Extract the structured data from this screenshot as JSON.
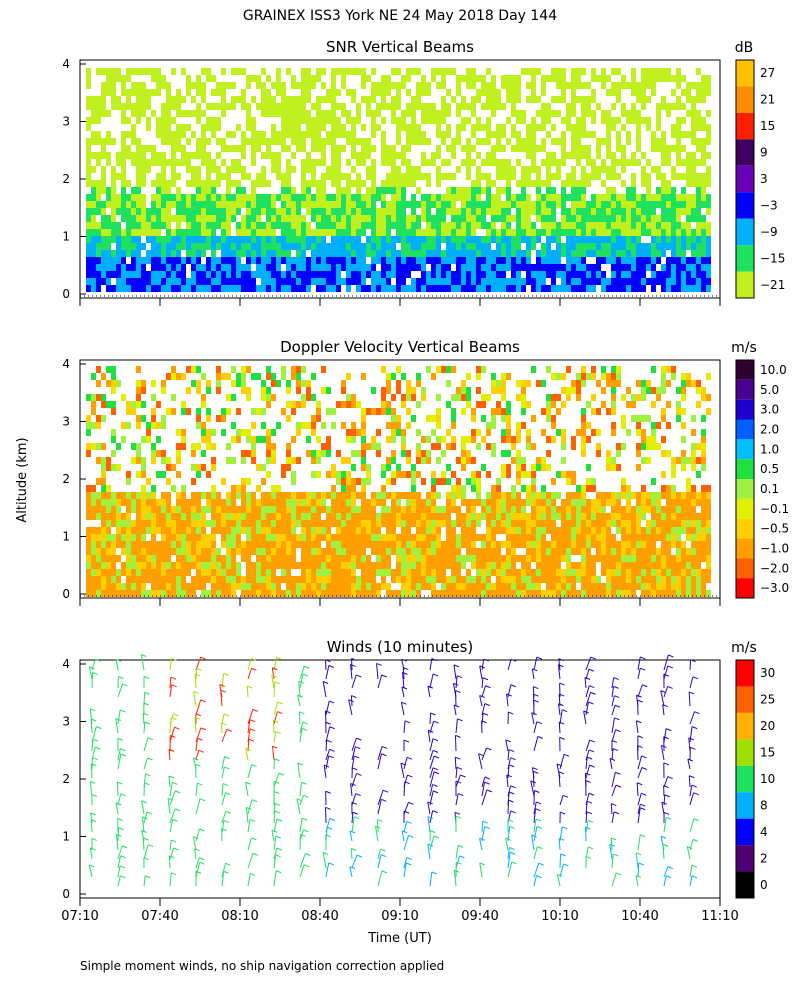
{
  "page": {
    "title": "GRAINEX ISS3 York NE  24 May 2018 Day 144",
    "ylabel": "Altitude (km)",
    "xlabel": "Time (UT)",
    "footnote": "Simple moment winds, no ship navigation correction applied"
  },
  "chart_data": [
    {
      "type": "heatmap",
      "title": "SNR Vertical Beams",
      "x_ticks": [
        "07:10",
        "07:40",
        "08:10",
        "08:40",
        "09:10",
        "09:40",
        "10:10",
        "10:40",
        "11:10"
      ],
      "y_ticks": [
        "0",
        "1",
        "2",
        "3",
        "4"
      ],
      "ylim": [
        0,
        4
      ],
      "colorbar": {
        "unit": "dB",
        "labels": [
          "27",
          "21",
          "15",
          "9",
          "3",
          "−3",
          "−9",
          "−15",
          "−21"
        ],
        "colors": [
          "#ffc000",
          "#ff8c00",
          "#ff2000",
          "#400060",
          "#6a00b8",
          "#0000ff",
          "#00b0ff",
          "#20e060",
          "#c0f020"
        ]
      }
    },
    {
      "type": "heatmap",
      "title": "Doppler Velocity Vertical Beams",
      "x_ticks": [
        "07:10",
        "07:40",
        "08:10",
        "08:40",
        "09:10",
        "09:40",
        "10:10",
        "10:40",
        "11:10"
      ],
      "y_ticks": [
        "0",
        "1",
        "2",
        "3",
        "4"
      ],
      "ylim": [
        0,
        4
      ],
      "colorbar": {
        "unit": "m/s",
        "labels": [
          "10.0",
          "5.0",
          "3.0",
          "2.0",
          "1.0",
          "0.5",
          "0.1",
          "−0.1",
          "−0.5",
          "−1.0",
          "−2.0",
          "−3.0"
        ],
        "colors": [
          "#300030",
          "#4a0090",
          "#2000d0",
          "#0060ff",
          "#00c0ff",
          "#20e040",
          "#a0f040",
          "#e0f000",
          "#ffd000",
          "#ffa000",
          "#ff6000",
          "#ff0000"
        ]
      }
    },
    {
      "type": "scatter",
      "title": "Winds (10 minutes)",
      "x_ticks": [
        "07:10",
        "07:40",
        "08:10",
        "08:40",
        "09:10",
        "09:40",
        "10:10",
        "10:40",
        "11:10"
      ],
      "y_ticks": [
        "0",
        "1",
        "2",
        "3",
        "4"
      ],
      "ylim": [
        0,
        4
      ],
      "colorbar": {
        "unit": "m/s",
        "labels": [
          "30",
          "25",
          "20",
          "15",
          "10",
          "8",
          "4",
          "2",
          "0"
        ],
        "colors": [
          "#ff0000",
          "#ff6000",
          "#ffb000",
          "#a0e000",
          "#20e060",
          "#00b0ff",
          "#0000ff",
          "#500070",
          "#000000"
        ]
      }
    }
  ]
}
